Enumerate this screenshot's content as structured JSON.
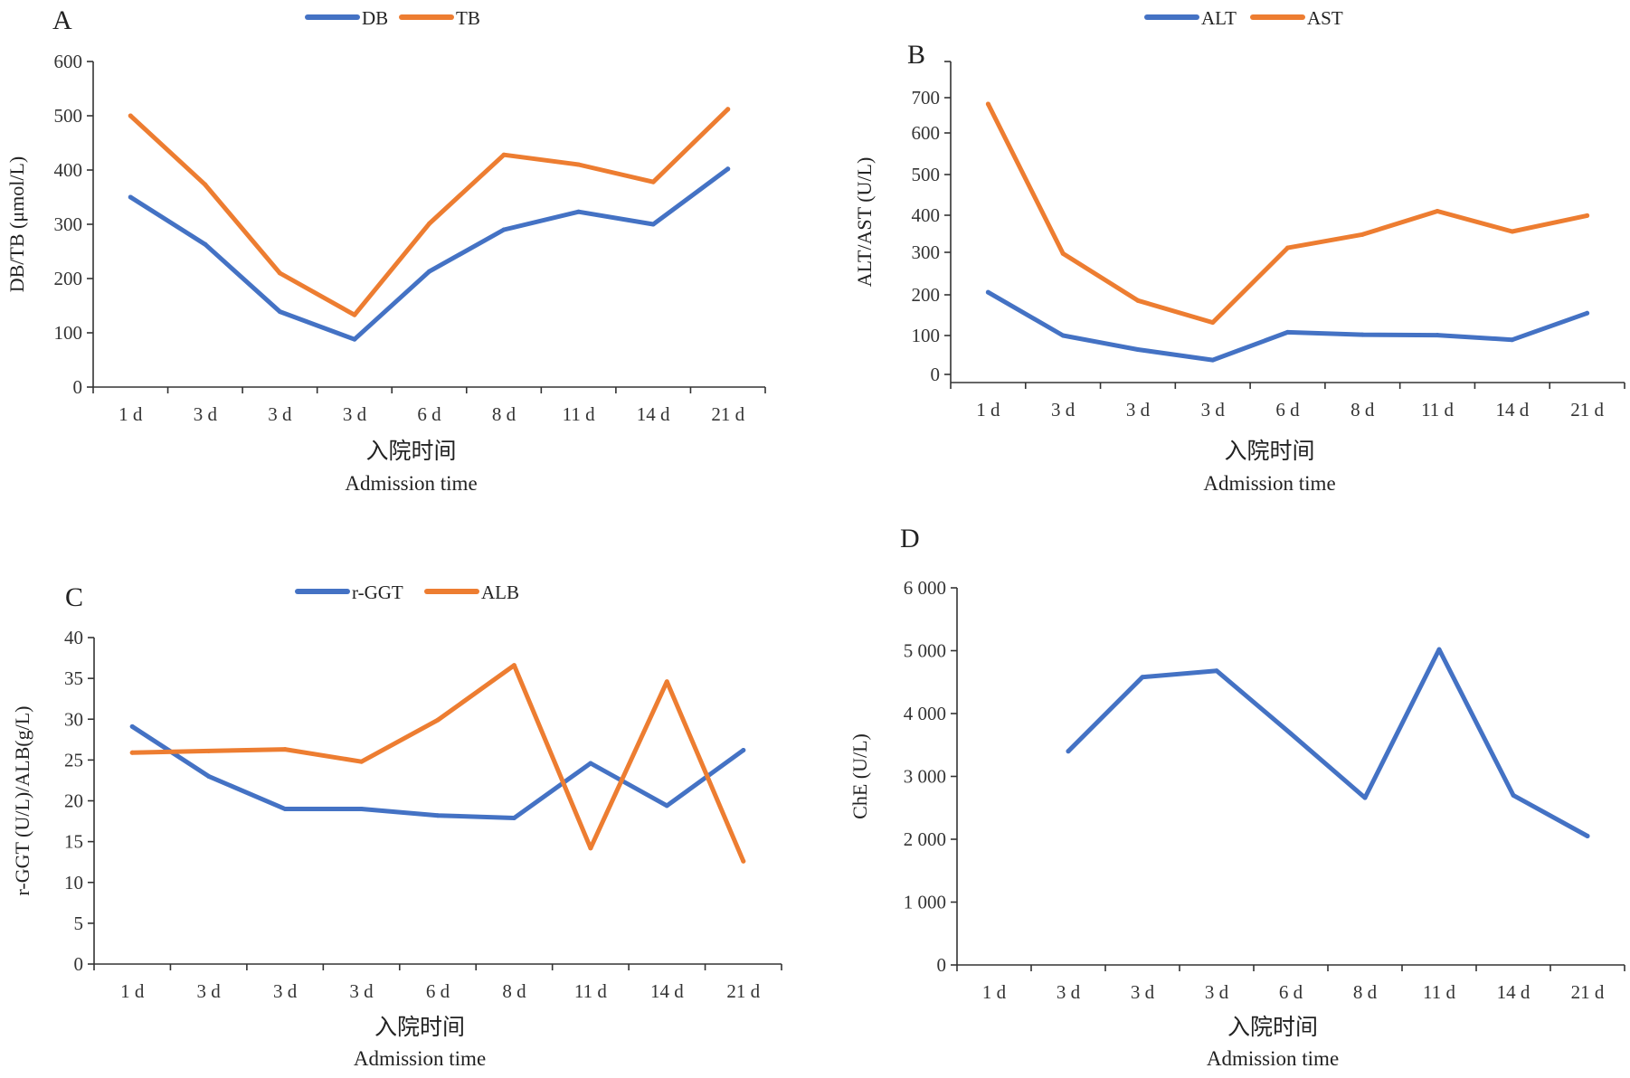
{
  "x_axis_title_cn": "入院时间",
  "x_axis_title_en": "Admission time",
  "colors": {
    "blue": "#4472C4",
    "orange": "#ED7D31"
  },
  "chart_data": [
    {
      "panel": "A",
      "type": "line",
      "categories": [
        "1 d",
        "3 d",
        "3 d",
        "3 d",
        "6 d",
        "8 d",
        "11 d",
        "14 d",
        "21 d"
      ],
      "ylabel": "DB/TB (μmol/L)",
      "ylim": [
        0,
        600
      ],
      "yticks": [
        0,
        100,
        200,
        300,
        400,
        500,
        600
      ],
      "ytick_labels": [
        "0",
        "100",
        "200",
        "300",
        "400",
        "500",
        "600"
      ],
      "legend": "top-center",
      "grid": false,
      "series": [
        {
          "name": "DB",
          "color": "#4472C4",
          "values": [
            350,
            263,
            139,
            88,
            213,
            290,
            323,
            300,
            402
          ]
        },
        {
          "name": "TB",
          "color": "#ED7D31",
          "values": [
            500,
            373,
            210,
            133,
            301,
            428,
            410,
            378,
            512
          ]
        }
      ]
    },
    {
      "panel": "B",
      "type": "line",
      "categories": [
        "1 d",
        "3 d",
        "3 d",
        "3 d",
        "6 d",
        "8 d",
        "11 d",
        "14 d",
        "21 d"
      ],
      "ylabel": "ALT/AST (U/L)",
      "ylim": [
        0,
        800
      ],
      "yticks": [
        0,
        100,
        200,
        300,
        400,
        500,
        600,
        700
      ],
      "ytick_labels": [
        "0",
        "100",
        "200",
        "300",
        "400",
        "500",
        "600",
        "700"
      ],
      "legend": "top-center",
      "grid": false,
      "series": [
        {
          "name": "ALT",
          "color": "#4472C4",
          "values": [
            206,
            100,
            64,
            37,
            108,
            102,
            101,
            89,
            155
          ]
        },
        {
          "name": "AST",
          "color": "#ED7D31",
          "values": [
            682,
            297,
            186,
            132,
            312,
            348,
            410,
            356,
            399
          ]
        }
      ]
    },
    {
      "panel": "C",
      "type": "line",
      "categories": [
        "1 d",
        "3 d",
        "3 d",
        "3 d",
        "6 d",
        "8 d",
        "11 d",
        "14 d",
        "21 d"
      ],
      "ylabel": "r-GGT (U/L)/ALB(g/L)",
      "ylim": [
        0,
        40
      ],
      "yticks": [
        0,
        5,
        10,
        15,
        20,
        25,
        30,
        35,
        40
      ],
      "ytick_labels": [
        "0",
        "5",
        "10",
        "15",
        "20",
        "25",
        "30",
        "35",
        "40"
      ],
      "legend": "top-center",
      "grid": false,
      "series": [
        {
          "name": "r-GGT",
          "color": "#4472C4",
          "values": [
            29.1,
            23.0,
            19.0,
            19.0,
            18.2,
            17.9,
            24.6,
            19.4,
            26.2
          ]
        },
        {
          "name": "ALB",
          "color": "#ED7D31",
          "values": [
            25.9,
            26.1,
            26.3,
            24.8,
            29.9,
            36.6,
            14.2,
            34.6,
            12.6
          ]
        }
      ]
    },
    {
      "panel": "D",
      "type": "line",
      "categories": [
        "1 d",
        "3 d",
        "3 d",
        "3 d",
        "6 d",
        "8 d",
        "11 d",
        "14 d",
        "21 d"
      ],
      "ylabel": "ChE (U/L)",
      "ylim": [
        0,
        6000
      ],
      "yticks": [
        0,
        1000,
        2000,
        3000,
        4000,
        5000,
        6000
      ],
      "ytick_labels": [
        "0",
        "1 000",
        "2 000",
        "3 000",
        "4 000",
        "5 000",
        "6 000"
      ],
      "legend": "none",
      "grid": false,
      "series": [
        {
          "color": "#4472C4",
          "values": [
            null,
            3400,
            4580,
            4680,
            3680,
            2660,
            5020,
            2700,
            2050
          ]
        }
      ]
    }
  ]
}
